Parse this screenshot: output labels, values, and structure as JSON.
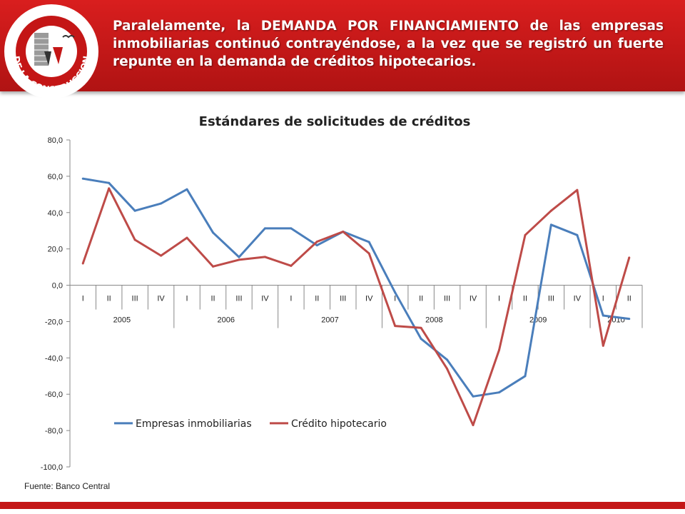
{
  "header": {
    "logo_text": "CAMARA CHILENA DE LA CONSTRUCCION",
    "headline": "Paralelamente, la DEMANDA POR FINANCIAMIENTO de las empresas inmobiliarias continuó contrayéndose, a la vez que se registró un fuerte repunte en la demanda de créditos hipotecarios.",
    "bg_color": "#c41616"
  },
  "source": "Fuente: Banco Central",
  "chart_data": {
    "type": "line",
    "title": "Estándares de solicitudes de créditos",
    "ylim": [
      -100,
      80
    ],
    "ystep": 20,
    "ytick_labels": [
      "-100,0",
      "-80,0",
      "-60,0",
      "-40,0",
      "-20,0",
      "0,0",
      "20,0",
      "40,0",
      "60,0",
      "80,0"
    ],
    "categories": [
      "I",
      "II",
      "III",
      "IV",
      "I",
      "II",
      "III",
      "IV",
      "I",
      "II",
      "III",
      "IV",
      "I",
      "II",
      "III",
      "IV",
      "I",
      "II",
      "III",
      "IV",
      "I",
      "II"
    ],
    "years": [
      {
        "label": "2005",
        "span": 4
      },
      {
        "label": "2006",
        "span": 4
      },
      {
        "label": "2007",
        "span": 4
      },
      {
        "label": "2008",
        "span": 4
      },
      {
        "label": "2009",
        "span": 4
      },
      {
        "label": "2010",
        "span": 2
      }
    ],
    "series": [
      {
        "name": "Empresas inmobiliarias",
        "color": "#4a7ebb",
        "values": [
          58.7,
          56.3,
          41.0,
          45.0,
          52.8,
          29.0,
          15.5,
          31.3,
          31.3,
          22.0,
          29.5,
          23.8,
          -4.0,
          -29.5,
          -41.0,
          -61.2,
          -59.0,
          -50.0,
          33.3,
          27.6,
          -16.7,
          -18.5
        ]
      },
      {
        "name": "Crédito hipotecario",
        "color": "#be4b48",
        "values": [
          12.0,
          53.3,
          25.0,
          16.3,
          26.1,
          10.3,
          14.0,
          15.6,
          10.7,
          24.0,
          29.5,
          17.5,
          -22.4,
          -23.5,
          -46.0,
          -77.0,
          -35.7,
          27.6,
          41.0,
          52.4,
          -33.3,
          15.2
        ]
      }
    ],
    "legend": "bottom-inside"
  }
}
